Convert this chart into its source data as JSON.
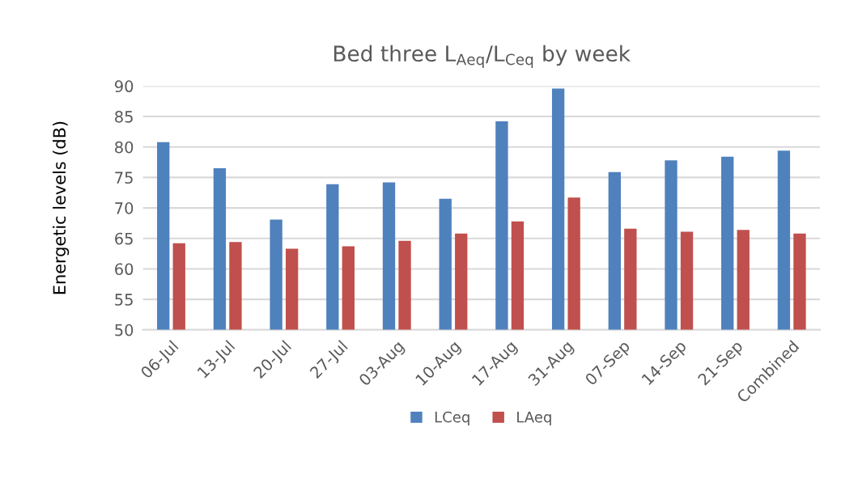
{
  "chart_data": {
    "type": "bar",
    "title": "Bed three L$_{Aeq}$/L$_{Ceq}$ by week",
    "ylabel": "Energetic levels (dB)",
    "categories": [
      "06-Jul",
      "13-Jul",
      "20-Jul",
      "27-Jul",
      "03-Aug",
      "10-Aug",
      "17-Aug",
      "31-Aug",
      "07-Sep",
      "14-Sep",
      "21-Sep",
      "Combined"
    ],
    "series": [
      {
        "name": "LCeq",
        "color": "#4f81bd",
        "values": [
          80.8,
          76.5,
          68.1,
          73.9,
          74.2,
          71.5,
          84.2,
          89.6,
          75.9,
          77.8,
          78.4,
          79.4
        ]
      },
      {
        "name": "LAeq",
        "color": "#c0504d",
        "values": [
          64.2,
          64.4,
          63.3,
          63.7,
          64.6,
          65.8,
          67.8,
          71.7,
          66.6,
          66.1,
          66.4,
          65.8
        ]
      }
    ],
    "ylim": [
      50,
      90
    ],
    "yticks": [
      50,
      55,
      60,
      65,
      70,
      75,
      80,
      85,
      90
    ],
    "grid": "y",
    "legend": "bottom"
  }
}
